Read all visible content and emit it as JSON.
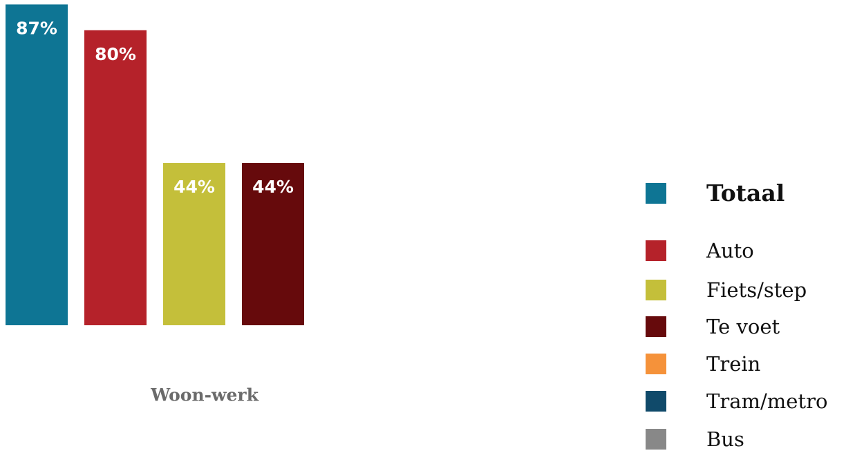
{
  "chart_data": {
    "type": "bar",
    "categories": [
      "Woon-werk"
    ],
    "series": [
      {
        "name": "Totaal",
        "color": "#0e7594",
        "values": [
          87
        ],
        "value_labels": [
          "87%"
        ]
      },
      {
        "name": "Auto",
        "color": "#b5222a",
        "values": [
          80
        ],
        "value_labels": [
          "80%"
        ]
      },
      {
        "name": "Fiets/step",
        "color": "#c4bf3a",
        "values": [
          44
        ],
        "value_labels": [
          "44%"
        ]
      },
      {
        "name": "Te voet",
        "color": "#660a0c",
        "values": [
          44
        ],
        "value_labels": [
          "44%"
        ]
      },
      {
        "name": "Trein",
        "color": "#f5923a",
        "values": [
          null
        ]
      },
      {
        "name": "Tram/metro",
        "color": "#104a6a",
        "values": [
          null
        ]
      },
      {
        "name": "Bus",
        "color": "#888888",
        "values": [
          null
        ]
      }
    ]
  }
}
